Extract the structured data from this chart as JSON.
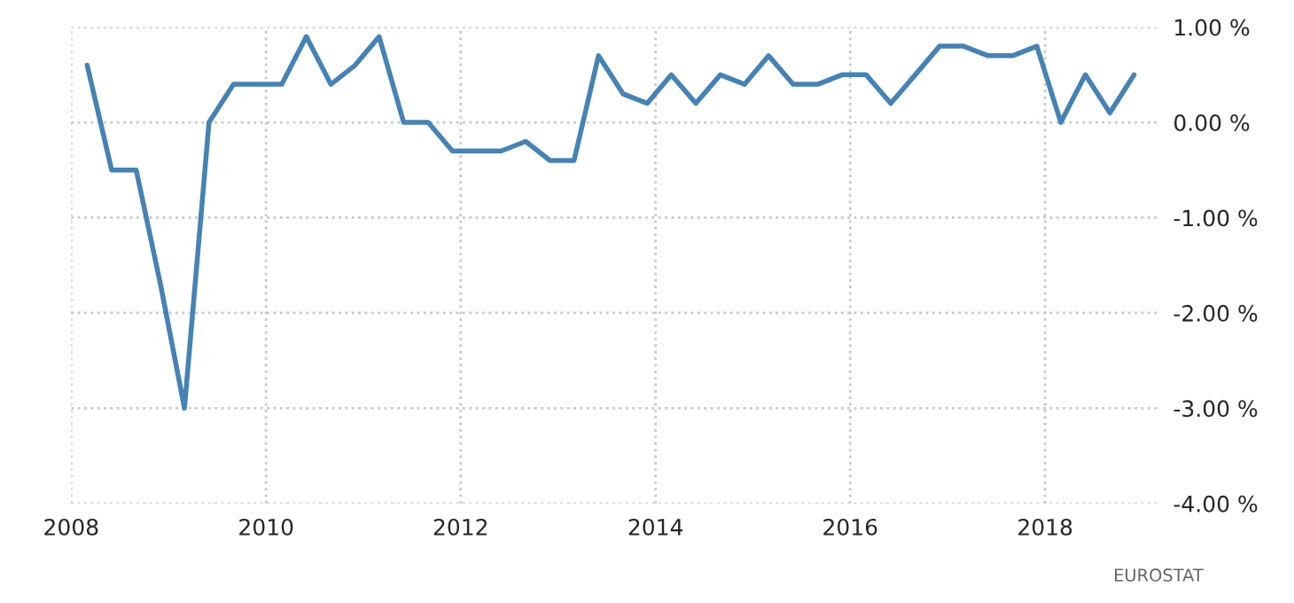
{
  "chart_data": {
    "type": "line",
    "x": [
      "2008-03",
      "2008-06",
      "2008-09",
      "2008-12",
      "2009-03",
      "2009-06",
      "2009-09",
      "2009-12",
      "2010-03",
      "2010-06",
      "2010-09",
      "2010-12",
      "2011-03",
      "2011-06",
      "2011-09",
      "2011-12",
      "2012-03",
      "2012-06",
      "2012-09",
      "2012-12",
      "2013-03",
      "2013-06",
      "2013-09",
      "2013-12",
      "2014-03",
      "2014-06",
      "2014-09",
      "2014-12",
      "2015-03",
      "2015-06",
      "2015-09",
      "2015-12",
      "2016-03",
      "2016-06",
      "2016-09",
      "2016-12",
      "2017-03",
      "2017-06",
      "2017-09",
      "2017-12",
      "2018-03",
      "2018-06",
      "2018-09",
      "2018-12"
    ],
    "series": [
      {
        "color": "#4682b4",
        "values": [
          0.6,
          -0.5,
          -0.5,
          -1.7,
          -3.0,
          0.0,
          0.4,
          0.4,
          0.4,
          0.9,
          0.4,
          0.6,
          0.9,
          0.0,
          0.0,
          -0.3,
          -0.3,
          -0.3,
          -0.2,
          -0.4,
          -0.4,
          0.7,
          0.3,
          0.2,
          0.5,
          0.2,
          0.5,
          0.4,
          0.7,
          0.4,
          0.4,
          0.5,
          0.5,
          0.2,
          0.5,
          0.8,
          0.8,
          0.7,
          0.7,
          0.8,
          0.0,
          0.5,
          0.1,
          0.5
        ]
      }
    ],
    "xlim": [
      "2008-01",
      "2019-03"
    ],
    "xticks": [
      {
        "value": "2008-01",
        "label": "2008"
      },
      {
        "value": "2010-01",
        "label": "2010"
      },
      {
        "value": "2012-01",
        "label": "2012"
      },
      {
        "value": "2014-01",
        "label": "2014"
      },
      {
        "value": "2016-01",
        "label": "2016"
      },
      {
        "value": "2018-01",
        "label": "2018"
      }
    ],
    "ylim": [
      -4,
      1
    ],
    "yticks": [
      {
        "value": 1,
        "label": "1.00 %"
      },
      {
        "value": 0,
        "label": "0.00 %"
      },
      {
        "value": -1,
        "label": "-1.00 %"
      },
      {
        "value": -2,
        "label": "-2.00 %"
      },
      {
        "value": -3,
        "label": "-3.00 %"
      },
      {
        "value": -4,
        "label": "-4.00 %"
      }
    ],
    "grid": true,
    "marker": "none",
    "line_style": "solid",
    "annotations": [
      "EUROSTAT"
    ]
  }
}
